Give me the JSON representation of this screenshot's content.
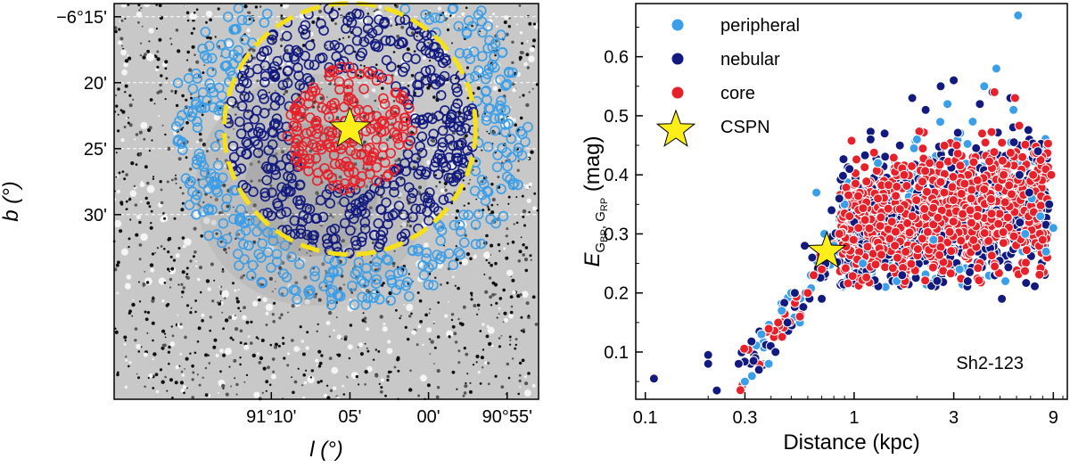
{
  "chart_data": [
    {
      "type": "image",
      "title": "",
      "xlabel": "l (°)",
      "ylabel": "b (°)",
      "x_ticks": [
        "91°10'",
        "05'",
        "00'",
        "90°55'"
      ],
      "y_ticks": [
        "−6°15'",
        "20'",
        "25'",
        "30'"
      ],
      "x_range_arcmin": [
        5480,
        5453
      ],
      "y_range_arcmin": [
        -374,
        -404
      ],
      "groups": [
        "peripheral",
        "nebular",
        "core"
      ],
      "center_star": {
        "label": "CSPN",
        "l_arcmin": 5465,
        "b_arcmin": -383.5
      },
      "boundary_radius_arcmin": 8,
      "colors": {
        "peripheral": "#3a9ee8",
        "nebular": "#121a80",
        "core": "#e8202a",
        "boundary": "#f5e01a",
        "star": "#ffee1a"
      }
    },
    {
      "type": "scatter",
      "title": "",
      "xlabel": "Distance (kpc)",
      "ylabel_main": "E",
      "ylabel_sub1": "G",
      "ylabel_subsub1": "BP",
      "ylabel_sep": ", ",
      "ylabel_sub2": "G",
      "ylabel_subsub2": "RP",
      "ylabel_unit": " (mag)",
      "xscale": "log",
      "xlim": [
        0.09,
        10.5
      ],
      "ylim": [
        0.02,
        0.69
      ],
      "x_ticks": [
        0.1,
        0.3,
        1,
        3,
        9
      ],
      "x_tick_labels": [
        "0.1",
        "0.3",
        "1",
        "3",
        "9"
      ],
      "y_ticks": [
        0.1,
        0.2,
        0.3,
        0.4,
        0.5,
        0.6
      ],
      "y_tick_labels": [
        "0.1",
        "0.2",
        "0.3",
        "0.4",
        "0.5",
        "0.6"
      ],
      "annotation": "Sh2-123",
      "legend": [
        {
          "label": "peripheral",
          "color": "#3a9ee8",
          "marker": "circle"
        },
        {
          "label": "nebular",
          "color": "#121a80",
          "marker": "circle"
        },
        {
          "label": "core",
          "color": "#e8202a",
          "marker": "circle"
        },
        {
          "label": "CSPN",
          "color": "#ffee1a",
          "marker": "star"
        }
      ],
      "cspn": {
        "distance_kpc": 0.74,
        "E": 0.27
      },
      "series": [
        {
          "name": "peripheral",
          "color": "#3a9ee8",
          "points": [
            [
              0.3,
              0.05
            ],
            [
              0.36,
              0.13
            ],
            [
              0.39,
              0.08
            ],
            [
              0.45,
              0.17
            ],
            [
              0.5,
              0.2
            ],
            [
              0.55,
              0.15
            ],
            [
              0.62,
              0.23
            ],
            [
              0.66,
              0.37
            ],
            [
              0.72,
              0.3
            ],
            [
              0.8,
              0.28
            ],
            [
              0.9,
              0.35
            ],
            [
              1.1,
              0.25
            ],
            [
              1.3,
              0.42
            ],
            [
              1.6,
              0.22
            ],
            [
              2.0,
              0.46
            ],
            [
              2.4,
              0.29
            ],
            [
              2.8,
              0.52
            ],
            [
              3.2,
              0.24
            ],
            [
              3.7,
              0.49
            ],
            [
              4.2,
              0.55
            ],
            [
              4.8,
              0.58
            ],
            [
              5.3,
              0.22
            ],
            [
              5.8,
              0.51
            ],
            [
              6.1,
              0.67
            ],
            [
              6.6,
              0.3
            ],
            [
              7.1,
              0.36
            ],
            [
              7.8,
              0.33
            ],
            [
              8.3,
              0.27
            ],
            [
              9.0,
              0.31
            ]
          ]
        },
        {
          "name": "nebular",
          "color": "#121a80",
          "points": [
            [
              0.11,
              0.055
            ],
            [
              0.2,
              0.095
            ],
            [
              0.2,
              0.08
            ],
            [
              0.22,
              0.035
            ],
            [
              0.28,
              0.08
            ],
            [
              0.33,
              0.085
            ],
            [
              0.35,
              0.07
            ],
            [
              0.42,
              0.1
            ],
            [
              0.48,
              0.15
            ],
            [
              0.52,
              0.2
            ],
            [
              0.58,
              0.28
            ],
            [
              0.63,
              0.26
            ],
            [
              0.7,
              0.19
            ],
            [
              0.78,
              0.34
            ],
            [
              0.85,
              0.36
            ],
            [
              0.95,
              0.41
            ],
            [
              1.0,
              0.32
            ],
            [
              1.2,
              0.46
            ],
            [
              1.4,
              0.47
            ],
            [
              1.7,
              0.23
            ],
            [
              1.9,
              0.53
            ],
            [
              2.2,
              0.51
            ],
            [
              2.6,
              0.55
            ],
            [
              3.0,
              0.56
            ],
            [
              3.5,
              0.22
            ],
            [
              4.0,
              0.52
            ],
            [
              4.6,
              0.54
            ],
            [
              5.1,
              0.19
            ],
            [
              5.6,
              0.53
            ],
            [
              6.2,
              0.4
            ],
            [
              6.9,
              0.37
            ],
            [
              7.6,
              0.44
            ],
            [
              8.6,
              0.35
            ]
          ]
        },
        {
          "name": "core",
          "color": "#e8202a",
          "points": [
            [
              0.55,
              0.16
            ],
            [
              0.6,
              0.2
            ],
            [
              0.64,
              0.23
            ],
            [
              0.7,
              0.24
            ],
            [
              0.85,
              0.3
            ],
            [
              0.95,
              0.33
            ],
            [
              1.05,
              0.31
            ],
            [
              1.3,
              0.36
            ],
            [
              1.6,
              0.38
            ],
            [
              1.9,
              0.33
            ],
            [
              2.3,
              0.42
            ],
            [
              2.7,
              0.37
            ],
            [
              3.1,
              0.45
            ],
            [
              3.6,
              0.34
            ],
            [
              4.1,
              0.47
            ],
            [
              4.7,
              0.54
            ],
            [
              5.2,
              0.4
            ],
            [
              5.9,
              0.53
            ],
            [
              6.4,
              0.43
            ],
            [
              7.2,
              0.4
            ],
            [
              8.0,
              0.29
            ],
            [
              8.8,
              0.4
            ]
          ]
        }
      ]
    }
  ]
}
